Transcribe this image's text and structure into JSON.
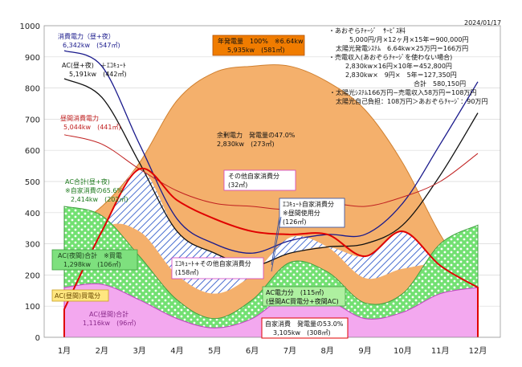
{
  "date": "2024/01/17",
  "notes": [
    "・あおぞらﾁｬｰｼﾞ　ｻｰﾋﾞｽ料",
    "5,000円/月×12ヶ月×15年＝900,000円",
    "太陽光発電ｼｽﾃﾑ　6.64kw×25万円＝166万円",
    "・売電収入(あおぞらﾁｬｰｼﾞを使わない場合)",
    "2,830kw×16円×10年＝452,800円",
    "2,830kw×　9円×　5年＝127,350円",
    "合計　580,150円",
    "・太陽光ｼｽﾃﾑ166万円−売電収入58万円＝108万円",
    "太陽光自己負担：108万円＞あおぞらﾁｬｰｼﾞ：90万円"
  ],
  "labels": {
    "consumption_title": "消費電力（昼+夜）",
    "consumption_value": "6,342kw　(547㎡)",
    "ac_eco_title": "AC(昼+夜)　＋ｴｺｷｭｰﾄ",
    "ac_eco_value": "5,191kw　(442㎡)",
    "daytime_title": "昼間消費電力",
    "daytime_value": "5,044kw　(441㎡)",
    "ac_total_title": "AC合計(昼+夜)",
    "ac_total_self": "※自家消費の65.6%",
    "ac_total_value": "2,414kw　(202㎡)",
    "ac_night_title": "AC(夜間)合計　※買電",
    "ac_night_value": "1,298kw　(106㎡)",
    "ac_day_buy": "AC(昼間)買電分",
    "ac_day_total_title": "AC(昼間)合計",
    "ac_day_total_value": "1,116kw　(96㎡)",
    "gen_title": "年発電量　100%　※6.64kw",
    "gen_value": "5,935kw　(581㎡)",
    "surplus_title": "余剰電力　発電量の47.0%",
    "surplus_value": "2,830kw　(273㎡)",
    "other_self_title": "その他自家消費分",
    "other_self_value": "(32㎡)",
    "eco_self_title": "ｴｺｷｭｰﾄ自家消費分",
    "eco_self_note": "※昼間使用分",
    "eco_self_value": "(126㎡)",
    "eco_other_title": "ｴｺｷｭｰﾄ+その他自家消費分",
    "eco_other_value": "(158㎡)",
    "ac_power_title": "AC電力分　(115㎡)",
    "ac_power_note": "(昼間AC買電分+夜間AC)",
    "self_title": "自家消費　発電量の53.0%",
    "self_value": "3,105kw　(308㎡)"
  },
  "chart_data": {
    "type": "area",
    "categories": [
      "1月",
      "2月",
      "3月",
      "4月",
      "5月",
      "6月",
      "7月",
      "8月",
      "9月",
      "10月",
      "11月",
      "12月"
    ],
    "ylim": [
      0,
      1000
    ],
    "yticks": [
      0,
      100,
      200,
      300,
      400,
      500,
      600,
      700,
      800,
      900,
      1000
    ],
    "grid": true,
    "colors": {
      "generation": "#f4b06c",
      "consumption": "#1a1a8c",
      "ac_eco": "#111111",
      "daytime": "#c02020",
      "ac_total": "#7ee07e",
      "ac_day_total": "#f07ee8",
      "self_boundary": "#e00000",
      "eco_hatch": "#4a6fd0",
      "other_hatch": "#c8c8ff"
    },
    "series": [
      {
        "name": "年発電量",
        "values": [
          340,
          420,
          560,
          760,
          850,
          870,
          870,
          820,
          730,
          560,
          330,
          150
        ]
      },
      {
        "name": "消費電力（昼+夜）",
        "values": [
          920,
          870,
          620,
          380,
          300,
          270,
          310,
          330,
          330,
          430,
          620,
          820
        ]
      },
      {
        "name": "AC(昼+夜)　＋ｴｺｷｭｰﾄ",
        "values": [
          830,
          770,
          560,
          340,
          270,
          230,
          270,
          290,
          300,
          360,
          520,
          720
        ]
      },
      {
        "name": "昼間消費電力",
        "values": [
          650,
          620,
          540,
          470,
          430,
          420,
          410,
          430,
          420,
          450,
          500,
          590
        ]
      },
      {
        "name": "AC合計(昼+夜)",
        "values": [
          420,
          390,
          260,
          120,
          60,
          120,
          240,
          210,
          110,
          140,
          300,
          360
        ]
      },
      {
        "name": "AC(昼間)合計",
        "values": [
          160,
          170,
          120,
          60,
          30,
          60,
          140,
          120,
          60,
          80,
          140,
          160
        ]
      },
      {
        "name": "自家消費",
        "values": [
          90,
          340,
          540,
          440,
          380,
          340,
          330,
          330,
          260,
          340,
          230,
          160
        ]
      }
    ]
  }
}
